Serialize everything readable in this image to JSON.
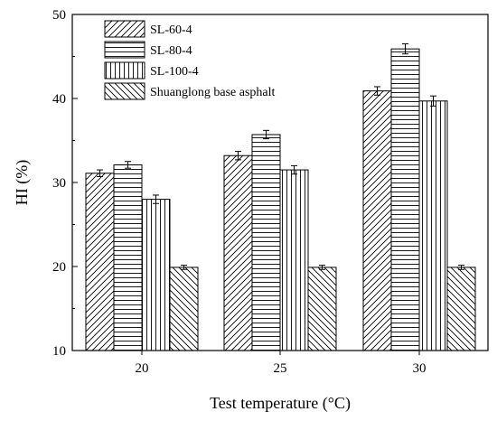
{
  "chart_data": {
    "type": "bar",
    "title": "",
    "xlabel": "Test temperature (°C)",
    "ylabel": "HI (%)",
    "ylim": [
      10,
      50
    ],
    "yticks": [
      10,
      20,
      30,
      40,
      50
    ],
    "categories": [
      "20",
      "25",
      "30"
    ],
    "grid": false,
    "legend_position": "top-left",
    "error_bars": true,
    "series": [
      {
        "name": "SL-60-4",
        "values": [
          31.1,
          33.2,
          40.9
        ],
        "errors": [
          0.4,
          0.5,
          0.5
        ],
        "pattern": "diagonal-up"
      },
      {
        "name": "SL-80-4",
        "values": [
          32.1,
          35.7,
          45.9
        ],
        "errors": [
          0.4,
          0.5,
          0.6
        ],
        "pattern": "horizontal"
      },
      {
        "name": "SL-100-4",
        "values": [
          28.0,
          31.5,
          39.7
        ],
        "errors": [
          0.5,
          0.5,
          0.6
        ],
        "pattern": "vertical"
      },
      {
        "name": "Shuanglong base asphalt",
        "values": [
          19.9,
          19.9,
          19.9
        ],
        "errors": [
          0.25,
          0.25,
          0.25
        ],
        "pattern": "diagonal-down"
      }
    ]
  }
}
